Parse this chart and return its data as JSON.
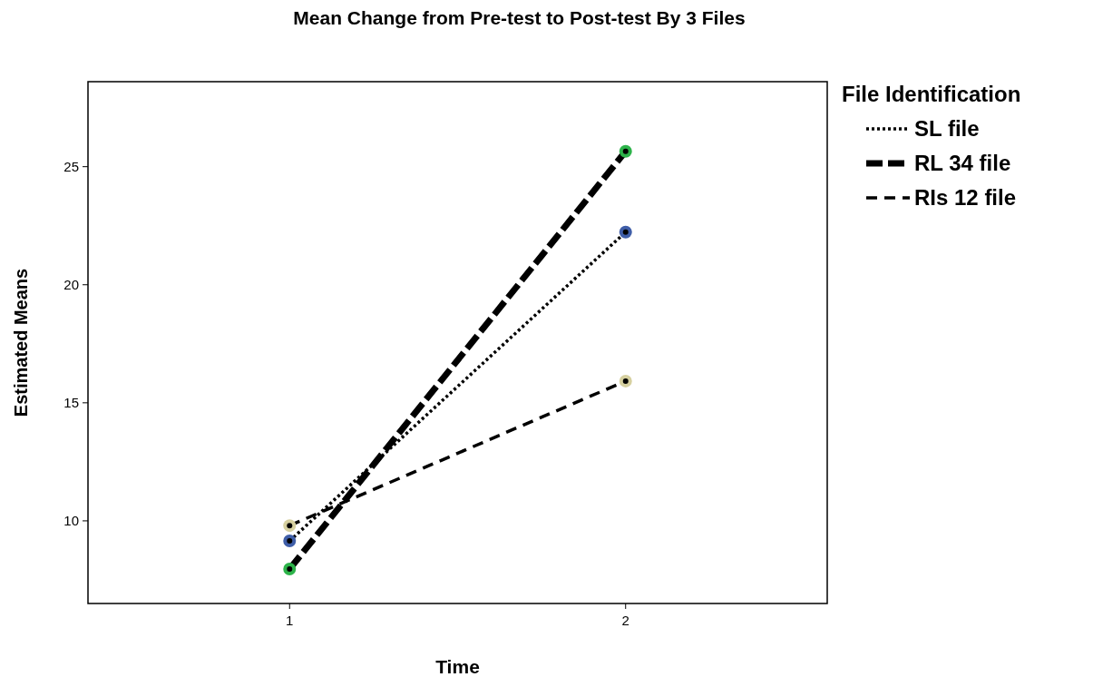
{
  "chart_data": {
    "type": "line",
    "title": "Mean Change from Pre-test to Post-test By 3 Files",
    "xlabel": "Time",
    "ylabel": "Estimated Means",
    "legend_title": "File Identification",
    "x": [
      1,
      2
    ],
    "xlim": [
      0.4,
      2.6
    ],
    "xticks": [
      1,
      2
    ],
    "ylim": [
      6.5,
      28.6
    ],
    "yticks": [
      10,
      15,
      20,
      25
    ],
    "grid": false,
    "legend": "top right",
    "marker": "circle",
    "series": [
      {
        "name": "SL file",
        "color": "#000000",
        "colors": [
          "#3f5ea8",
          "#3f5ea8"
        ],
        "line_style": "dotted",
        "values": [
          9.15,
          22.23
        ]
      },
      {
        "name": "RL 34 file",
        "color": "#000000",
        "colors": [
          "#2db34a",
          "#2db34a"
        ],
        "line_style": "dashed",
        "values": [
          7.96,
          25.65
        ]
      },
      {
        "name": "RIs 12 file",
        "color": "#000000",
        "colors": [
          "#d6d0a0",
          "#d6d0a0"
        ],
        "line_style": "dashed",
        "values": [
          9.8,
          15.92
        ]
      }
    ]
  }
}
